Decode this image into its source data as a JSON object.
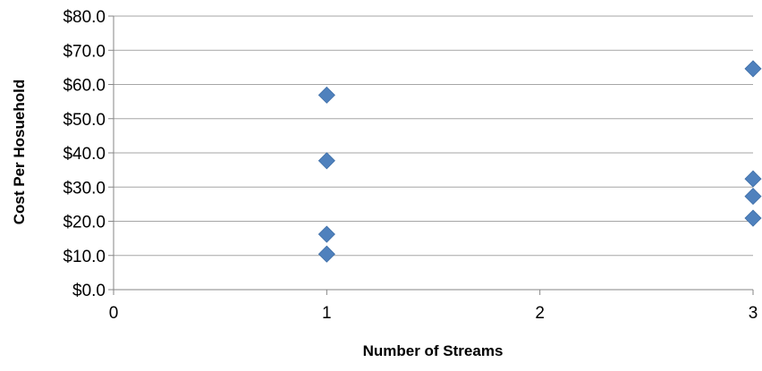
{
  "chart_data": {
    "type": "scatter",
    "title": "",
    "xlabel": "Number of Streams",
    "ylabel": "Cost Per Hosuehold",
    "xlim": [
      0,
      3
    ],
    "ylim": [
      0,
      80
    ],
    "x_ticks": [
      "0",
      "1",
      "2",
      "3"
    ],
    "y_ticks": [
      "$0.0",
      "$10.0",
      "$20.0",
      "$30.0",
      "$40.0",
      "$50.0",
      "$60.0",
      "$70.0",
      "$80.0"
    ],
    "grid": "horizontal",
    "legend": "none",
    "marker": "diamond",
    "series": [
      {
        "color": "#4F81BD",
        "points": [
          {
            "x": 1,
            "y": 56.9
          },
          {
            "x": 1,
            "y": 37.7
          },
          {
            "x": 1,
            "y": 16.2
          },
          {
            "x": 1,
            "y": 10.4
          },
          {
            "x": 3,
            "y": 64.6
          },
          {
            "x": 3,
            "y": 32.4
          },
          {
            "x": 3,
            "y": 27.3
          },
          {
            "x": 3,
            "y": 20.9
          }
        ]
      }
    ]
  },
  "colors": {
    "gridline": "#A6A6A6",
    "axis": "#868686"
  }
}
